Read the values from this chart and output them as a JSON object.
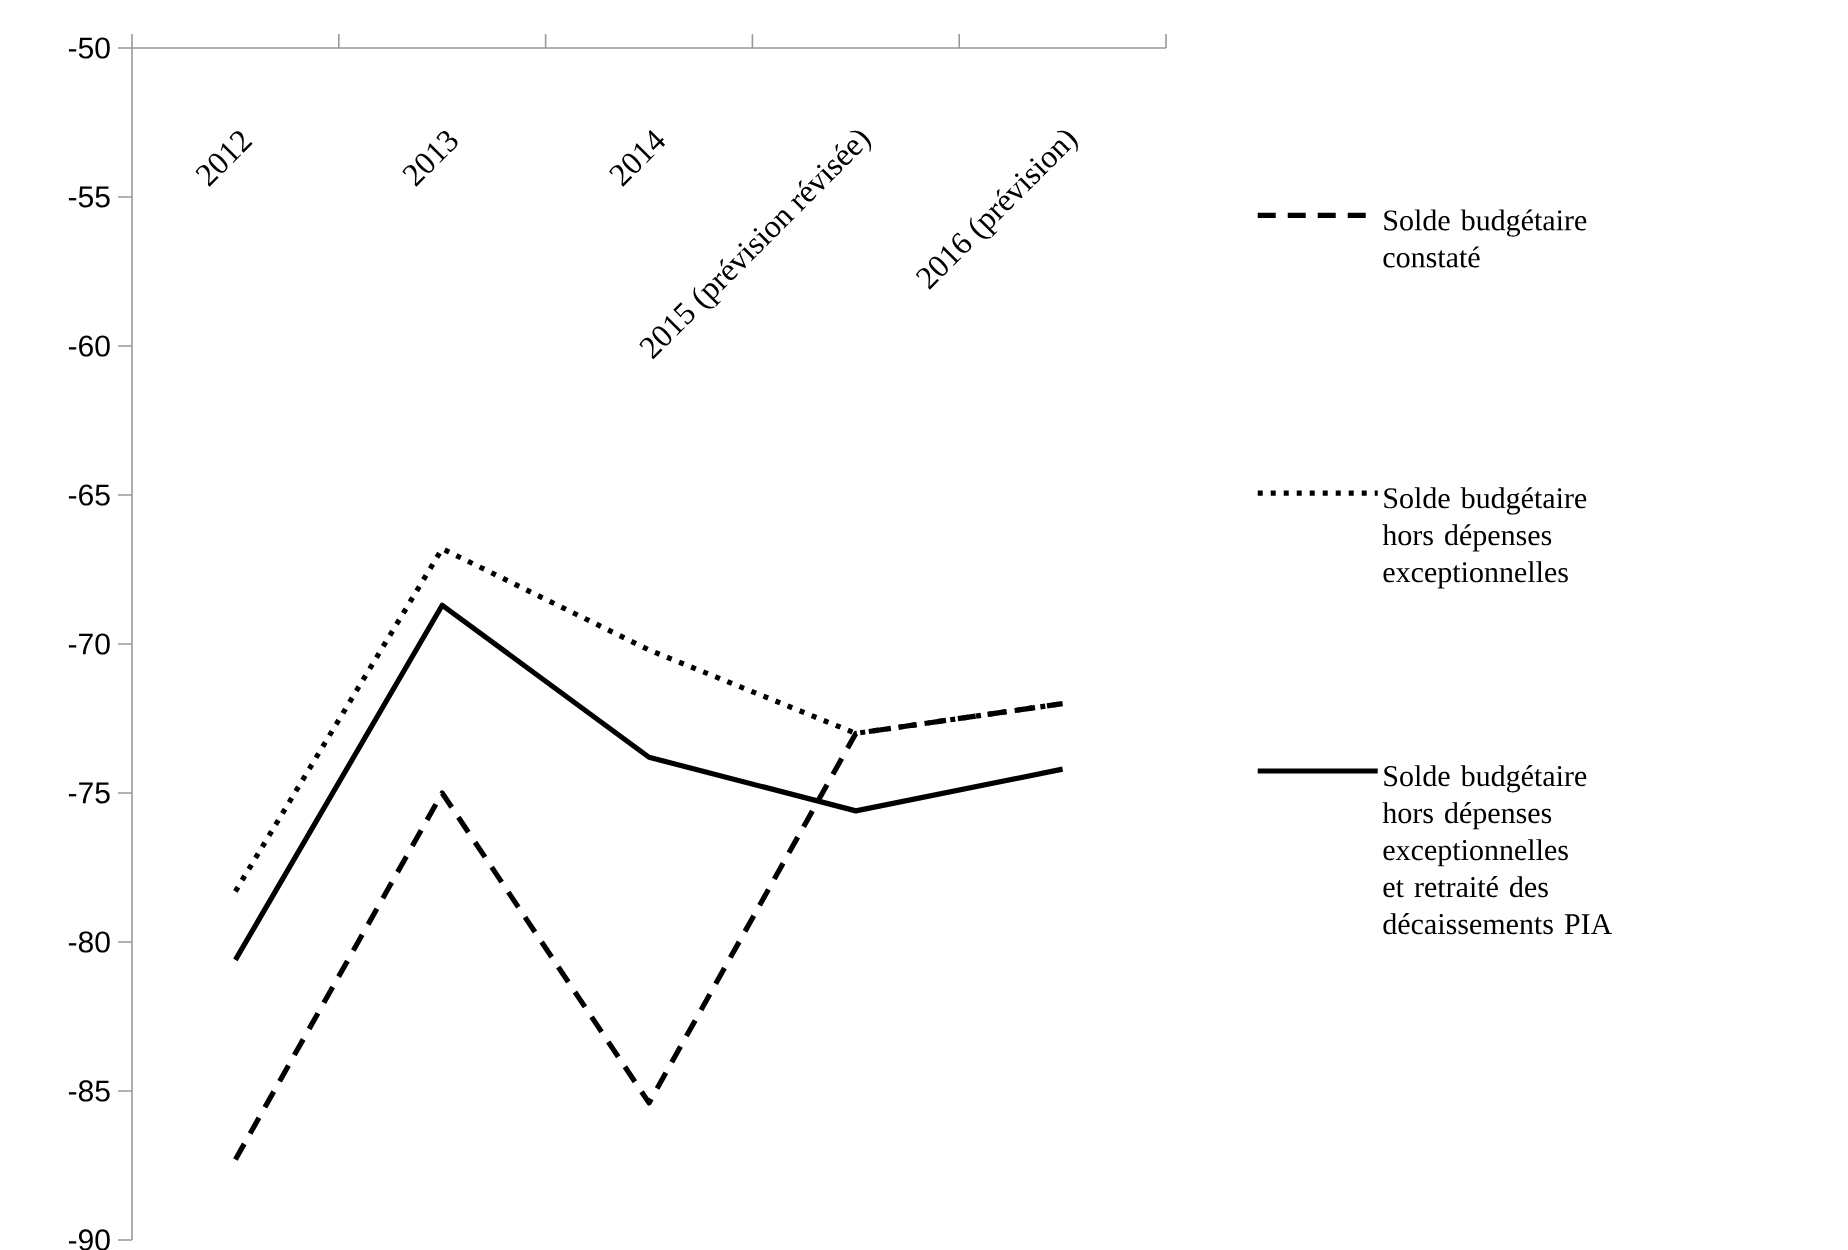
{
  "chart_data": {
    "type": "line",
    "categories": [
      "2012",
      "2013",
      "2014",
      "2015 (prévision révisée)",
      "2016 (prévision)"
    ],
    "series": [
      {
        "name": "Solde budgétaire constaté",
        "color": "#000000",
        "line_style": "dashed",
        "values": [
          -87.3,
          -75.0,
          -85.4,
          -73.0,
          -72.0
        ]
      },
      {
        "name": "Solde budgétaire hors dépenses exceptionnelles",
        "color": "#000000",
        "line_style": "dotted",
        "values": [
          -78.3,
          -66.8,
          -70.2,
          -73.0,
          -72.0
        ]
      },
      {
        "name": "Solde budgétaire hors dépenses exceptionnelles et retraité des décaissements PIA",
        "color": "#000000",
        "line_style": "solid",
        "values": [
          -80.6,
          -68.7,
          -73.8,
          -75.6,
          -74.2
        ]
      }
    ],
    "ylim": [
      -90,
      -50
    ],
    "yticks": [
      -90,
      -85,
      -80,
      -75,
      -70,
      -65,
      -60,
      -55,
      -50
    ],
    "grid": false,
    "legend": "right",
    "marker": "none"
  }
}
